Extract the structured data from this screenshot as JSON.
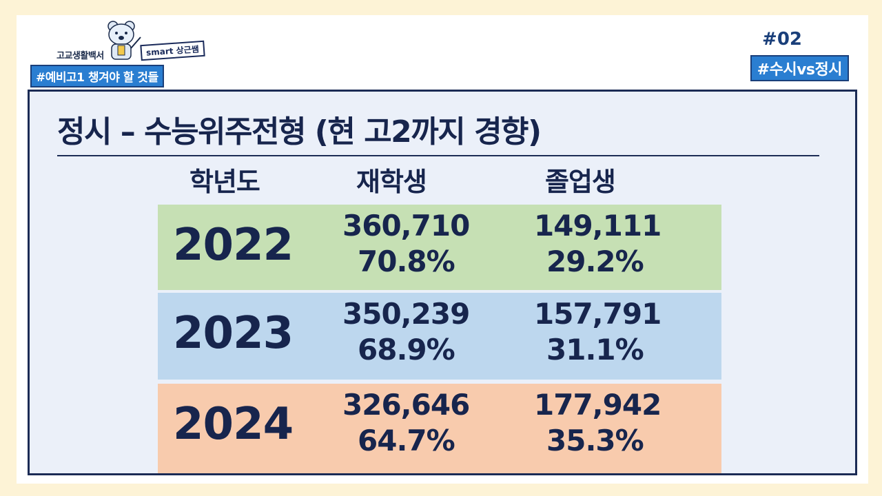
{
  "logo": {
    "brand": "고교생활백서",
    "smart_tag": "smart 상근쌤",
    "hashtag": "#예비고1 챙겨야 할 것들"
  },
  "tag": {
    "number": "#02",
    "banner": "#수시vs정시"
  },
  "title": "정시 – 수능위주전형 (현 고2까지 경향)",
  "table": {
    "headers": [
      "학년도",
      "재학생",
      "졸업생"
    ],
    "rows": [
      {
        "year": "2022",
        "enrolled_count": "360,710",
        "enrolled_pct": "70.8%",
        "graduate_count": "149,111",
        "graduate_pct": "29.2%",
        "color": "#c6e0b4"
      },
      {
        "year": "2023",
        "enrolled_count": "350,239",
        "enrolled_pct": "68.9%",
        "graduate_count": "157,791",
        "graduate_pct": "31.1%",
        "color": "#bdd7ee"
      },
      {
        "year": "2024",
        "enrolled_count": "326,646",
        "enrolled_pct": "64.7%",
        "graduate_count": "177,942",
        "graduate_pct": "35.3%",
        "color": "#f8cbad"
      }
    ]
  }
}
